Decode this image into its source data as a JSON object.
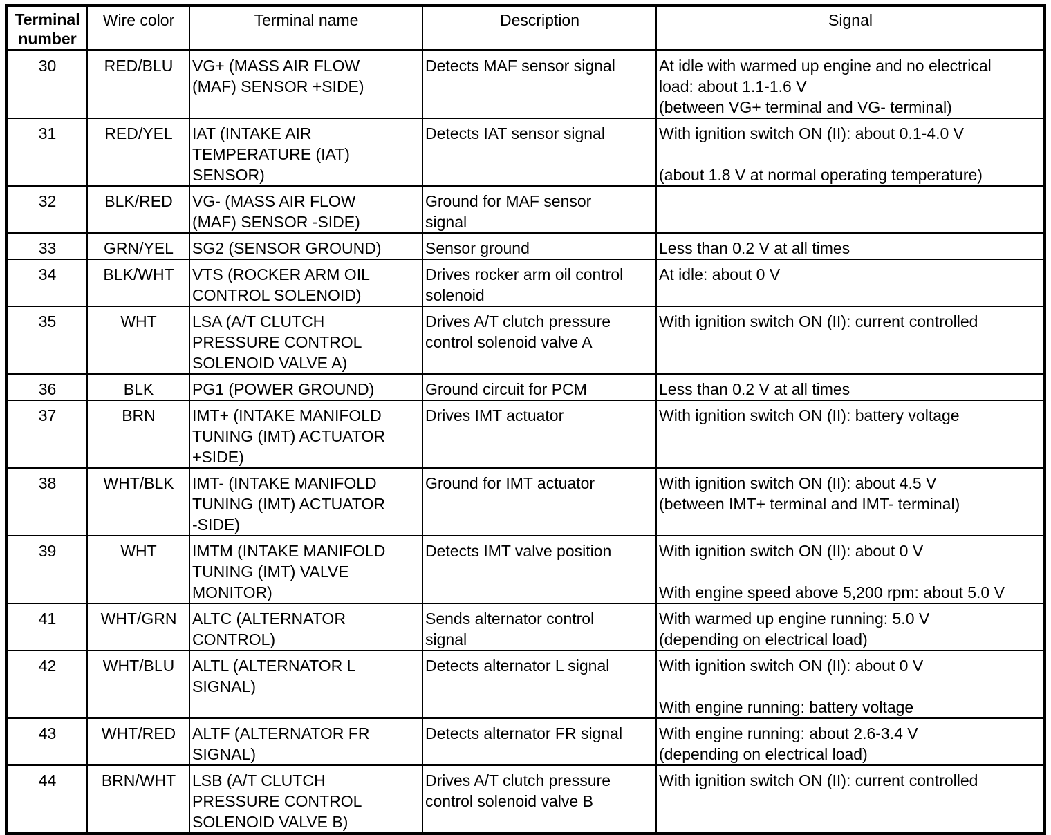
{
  "headers": [
    "Terminal\nnumber",
    "Wire color",
    "Terminal name",
    "Description",
    "Signal"
  ],
  "rows": [
    {
      "num": "30",
      "wire": "RED/BLU",
      "name": "VG+ (MASS AIR FLOW\n(MAF) SENSOR +SIDE)",
      "desc": "Detects MAF sensor signal",
      "signal": "At idle with warmed up engine and no electrical\nload: about 1.1-1.6 V\n(between VG+ terminal and VG- terminal)"
    },
    {
      "num": "31",
      "wire": "RED/YEL",
      "name": "IAT (INTAKE AIR\nTEMPERATURE (IAT)\nSENSOR)",
      "desc": "Detects IAT sensor signal",
      "signal": "With ignition switch ON (II): about 0.1-4.0 V\n\n(about 1.8 V at normal operating temperature)"
    },
    {
      "num": "32",
      "wire": "BLK/RED",
      "name": "VG- (MASS AIR FLOW\n(MAF) SENSOR -SIDE)",
      "desc": "Ground for MAF sensor\nsignal",
      "signal": ""
    },
    {
      "num": "33",
      "wire": "GRN/YEL",
      "name": "SG2 (SENSOR GROUND)",
      "desc": "Sensor ground",
      "signal": "Less than 0.2 V at all times"
    },
    {
      "num": "34",
      "wire": "BLK/WHT",
      "name": "VTS (ROCKER ARM OIL\nCONTROL SOLENOID)",
      "desc": "Drives rocker arm oil control\nsolenoid",
      "signal": "At idle: about 0 V"
    },
    {
      "num": "35",
      "wire": "WHT",
      "name": "LSA (A/T CLUTCH\nPRESSURE CONTROL\nSOLENOID VALVE A)",
      "desc": "Drives A/T clutch pressure\ncontrol solenoid valve A",
      "signal": "With ignition switch ON (II): current controlled"
    },
    {
      "num": "36",
      "wire": "BLK",
      "name": "PG1 (POWER GROUND)",
      "desc": "Ground circuit for PCM",
      "signal": "Less than 0.2 V at all times"
    },
    {
      "num": "37",
      "wire": "BRN",
      "name": "IMT+ (INTAKE MANIFOLD\nTUNING (IMT) ACTUATOR\n+SIDE)",
      "desc": "Drives IMT actuator",
      "signal": "With ignition switch ON (II): battery voltage"
    },
    {
      "num": "38",
      "wire": "WHT/BLK",
      "name": "IMT- (INTAKE MANIFOLD\nTUNING (IMT) ACTUATOR\n-SIDE)",
      "desc": "Ground for IMT actuator",
      "signal": "With ignition switch ON (II): about 4.5 V\n(between IMT+ terminal and IMT- terminal)"
    },
    {
      "num": "39",
      "wire": "WHT",
      "name": "IMTM (INTAKE MANIFOLD\nTUNING (IMT) VALVE\nMONITOR)",
      "desc": "Detects IMT valve position",
      "signal": "With ignition switch ON (II): about 0 V\n\nWith engine speed above 5,200 rpm: about 5.0 V"
    },
    {
      "num": "41",
      "wire": "WHT/GRN",
      "name": "ALTC (ALTERNATOR\nCONTROL)",
      "desc": "Sends alternator control\nsignal",
      "signal": "With warmed up engine running: 5.0 V\n(depending on electrical load)"
    },
    {
      "num": "42",
      "wire": "WHT/BLU",
      "name": "ALTL (ALTERNATOR L\nSIGNAL)",
      "desc": "Detects alternator L signal",
      "signal": "With ignition switch ON (II): about 0 V\n\nWith engine running: battery voltage"
    },
    {
      "num": "43",
      "wire": "WHT/RED",
      "name": "ALTF (ALTERNATOR FR\nSIGNAL)",
      "desc": "Detects alternator FR signal",
      "signal": "With engine running: about 2.6-3.4 V\n(depending on electrical load)"
    },
    {
      "num": "44",
      "wire": "BRN/WHT",
      "name": "LSB (A/T CLUTCH\nPRESSURE CONTROL\nSOLENOID VALVE B)",
      "desc": "Drives A/T clutch pressure\ncontrol solenoid valve B",
      "signal": "With ignition switch ON (II): current controlled"
    }
  ]
}
